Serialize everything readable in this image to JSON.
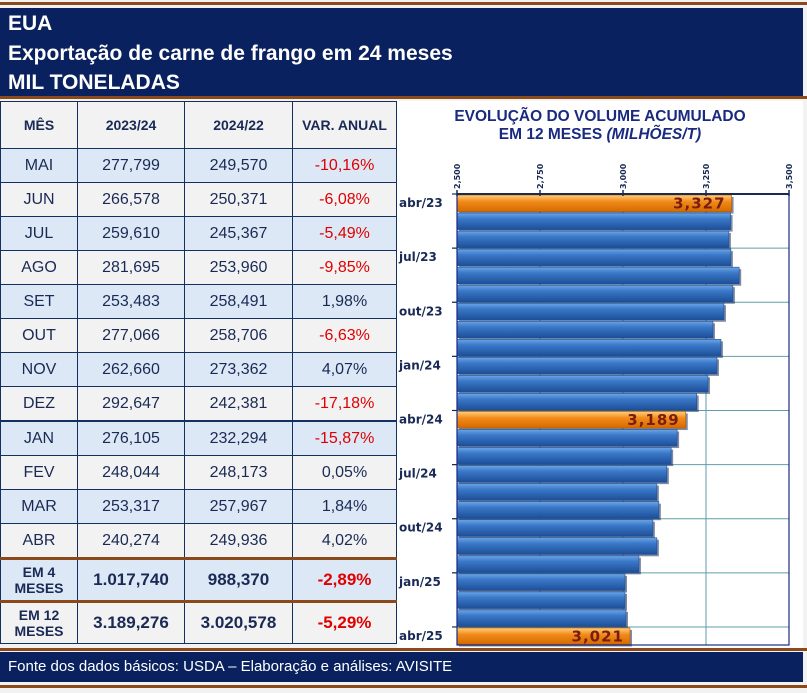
{
  "header": {
    "country": "EUA",
    "title": "Exportação de carne de frango em 24 meses",
    "unit": "MIL TONELADAS"
  },
  "table": {
    "columns": [
      "MÊS",
      "2023/24",
      "2024/22",
      "VAR. ANUAL"
    ],
    "rows": [
      {
        "mes": "MAI",
        "a": "277,799",
        "b": "249,570",
        "var": "-10,16%",
        "neg": true
      },
      {
        "mes": "JUN",
        "a": "266,578",
        "b": "250,371",
        "var": "-6,08%",
        "neg": true
      },
      {
        "mes": "JUL",
        "a": "259,610",
        "b": "245,367",
        "var": "-5,49%",
        "neg": true
      },
      {
        "mes": "AGO",
        "a": "281,695",
        "b": "253,960",
        "var": "-9,85%",
        "neg": true
      },
      {
        "mes": "SET",
        "a": "253,483",
        "b": "258,491",
        "var": "1,98%",
        "neg": false
      },
      {
        "mes": "OUT",
        "a": "277,066",
        "b": "258,706",
        "var": "-6,63%",
        "neg": true
      },
      {
        "mes": "NOV",
        "a": "262,660",
        "b": "273,362",
        "var": "4,07%",
        "neg": false
      },
      {
        "mes": "DEZ",
        "a": "292,647",
        "b": "242,381",
        "var": "-17,18%",
        "neg": true
      },
      {
        "mes": "JAN",
        "a": "276,105",
        "b": "232,294",
        "var": "-15,87%",
        "neg": true
      },
      {
        "mes": "FEV",
        "a": "248,044",
        "b": "248,173",
        "var": "0,05%",
        "neg": false
      },
      {
        "mes": "MAR",
        "a": "253,317",
        "b": "257,967",
        "var": "1,84%",
        "neg": false
      },
      {
        "mes": "ABR",
        "a": "240,274",
        "b": "249,936",
        "var": "4,02%",
        "neg": false
      }
    ],
    "summary": [
      {
        "mes_line1": "EM 4",
        "mes_line2": "MESES",
        "a": "1.017,740",
        "b": "988,370",
        "var": "-2,89%"
      },
      {
        "mes_line1": "EM 12",
        "mes_line2": "MESES",
        "a": "3.189,276",
        "b": "3.020,578",
        "var": "-5,29%"
      }
    ]
  },
  "colors": {
    "navy": "#0a2160",
    "brown_rule": "#8b4a1a",
    "negative": "#e00000",
    "bar_blue": "#3a78c8",
    "bar_orange": "#f28a1a"
  },
  "chart_data": {
    "type": "bar",
    "orientation": "horizontal",
    "title_line1": "EVOLUÇÃO  DO VOLUME ACUMULADO",
    "title_line2_main": "EM 12 MESES ",
    "title_line2_italic": "(MILHÕES/T)",
    "xlim": [
      2.5,
      3.5
    ],
    "xticks": [
      "2,500",
      "2,750",
      "3,000",
      "3,250",
      "3,500"
    ],
    "xtick_values": [
      2.5,
      2.75,
      3.0,
      3.25,
      3.5
    ],
    "categories": [
      "abr/23",
      "mai/23",
      "jun/23",
      "jul/23",
      "ago/23",
      "set/23",
      "out/23",
      "nov/23",
      "dez/23",
      "jan/24",
      "fev/24",
      "mar/24",
      "abr/24",
      "mai/24",
      "jun/24",
      "jul/24",
      "ago/24",
      "set/24",
      "out/24",
      "nov/24",
      "dez/24",
      "jan/25",
      "fev/25",
      "mar/25",
      "abr/25"
    ],
    "ylabels": [
      "abr/23",
      "jul/23",
      "out/23",
      "jan/24",
      "abr/24",
      "jul/24",
      "out/24",
      "jan/25",
      "abr/25"
    ],
    "values": [
      3.327,
      3.324,
      3.319,
      3.325,
      3.35,
      3.331,
      3.304,
      3.271,
      3.295,
      3.283,
      3.256,
      3.222,
      3.189,
      3.163,
      3.145,
      3.132,
      3.102,
      3.108,
      3.09,
      3.102,
      3.048,
      3.006,
      3.006,
      3.009,
      3.021
    ],
    "highlighted": [
      "abr/23",
      "abr/24",
      "abr/25"
    ],
    "data_labels": {
      "abr/23": "3,327",
      "abr/24": "3,189",
      "abr/25": "3,021"
    },
    "grid": true
  },
  "footer": {
    "source": "Fonte dos dados básicos: USDA – Elaboração e análises: AVISITE"
  }
}
